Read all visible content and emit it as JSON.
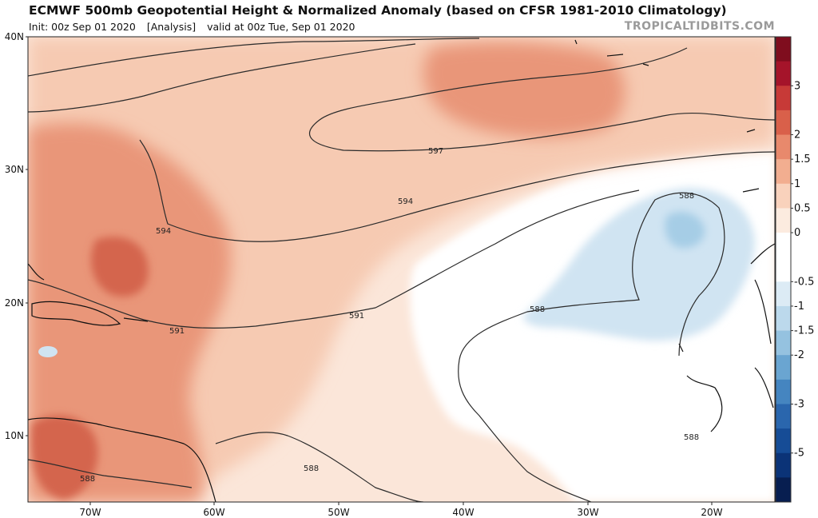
{
  "header": {
    "title": "ECMWF 500mb Geopotential Height & Normalized Anomaly (based on CFSR 1981-2010 Climatology)",
    "init": "Init: 00z Sep 01 2020",
    "run_type": "[Analysis]",
    "valid": "valid at 00z Tue, Sep 01 2020",
    "credit": "TROPICALTIDBITS.COM"
  },
  "map": {
    "lat_labels": [
      "40N",
      "30N",
      "20N",
      "10N"
    ],
    "lon_labels": [
      "70W",
      "60W",
      "50W",
      "40W",
      "30W",
      "20W"
    ],
    "contour_labels": [
      "597",
      "594",
      "594",
      "591",
      "591",
      "588",
      "588",
      "588",
      "588",
      "588",
      "588"
    ],
    "colors": {
      "warm_strong": "#d4654d",
      "warm_mid": "#e99679",
      "warm_light": "#f6cab2",
      "warm_faint": "#fbe6d9",
      "neutral": "#ffffff",
      "cool_light": "#d0e4f2",
      "cool_mid": "#a6cde6"
    }
  },
  "colorbar": {
    "labels": [
      "3",
      "2",
      "1.5",
      "1",
      "0.5",
      "0",
      "-0.5",
      "-1",
      "-1.5",
      "-2",
      "-3",
      "-5"
    ],
    "colors": [
      "#7f0d1e",
      "#a5142a",
      "#c73a37",
      "#d9604a",
      "#e8896c",
      "#f2ae90",
      "#f9d2bc",
      "#fcebdf",
      "#ffffff",
      "#ffffff",
      "#dcebf5",
      "#bcd9ec",
      "#95c2e0",
      "#6aa5d1",
      "#4585c0",
      "#2a66ad",
      "#164c96",
      "#0b3377",
      "#071e50"
    ]
  }
}
